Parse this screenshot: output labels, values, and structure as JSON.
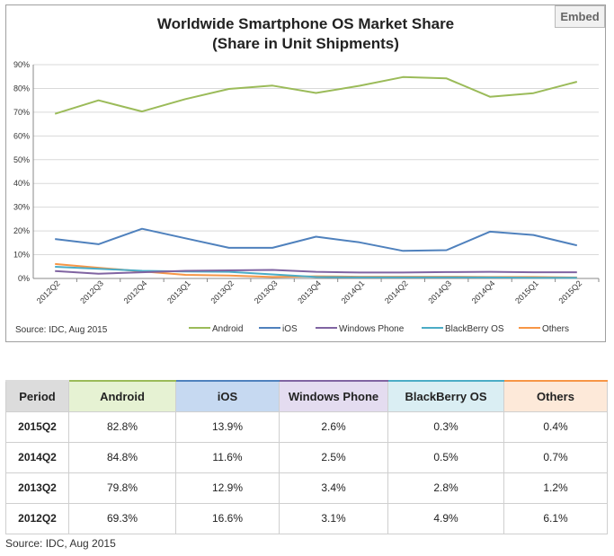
{
  "embed_label": "Embed",
  "chart_data": {
    "type": "line",
    "title": "Worldwide Smartphone OS Market Share",
    "subtitle": "(Share in Unit Shipments)",
    "source": "Source: IDC, Aug 2015",
    "ylim": [
      0,
      90
    ],
    "y_ticks": [
      "0%",
      "10%",
      "20%",
      "30%",
      "40%",
      "50%",
      "60%",
      "70%",
      "80%",
      "90%"
    ],
    "categories": [
      "2012Q2",
      "2012Q3",
      "2012Q4",
      "2013Q1",
      "2013Q2",
      "2013Q3",
      "2013Q4",
      "2014Q1",
      "2014Q2",
      "2014Q3",
      "2014Q4",
      "2015Q1",
      "2015Q2"
    ],
    "grid": true,
    "legend_position": "bottom",
    "series": [
      {
        "name": "Android",
        "color": "#9bbb59",
        "values": [
          69.3,
          75.0,
          70.3,
          75.5,
          79.8,
          81.2,
          78.1,
          81.1,
          84.8,
          84.2,
          76.5,
          78.0,
          82.8
        ]
      },
      {
        "name": "iOS",
        "color": "#4f81bd",
        "values": [
          16.6,
          14.4,
          20.9,
          16.9,
          12.9,
          12.9,
          17.6,
          15.2,
          11.6,
          11.9,
          19.7,
          18.3,
          13.9
        ]
      },
      {
        "name": "Windows Phone",
        "color": "#8064a2",
        "values": [
          3.1,
          2.0,
          2.6,
          3.2,
          3.4,
          3.6,
          2.8,
          2.5,
          2.5,
          2.7,
          2.8,
          2.6,
          2.6
        ]
      },
      {
        "name": "BlackBerry OS",
        "color": "#4bacc6",
        "values": [
          4.9,
          4.1,
          3.2,
          2.9,
          2.8,
          1.7,
          0.6,
          0.5,
          0.5,
          0.5,
          0.4,
          0.3,
          0.3
        ]
      },
      {
        "name": "Others",
        "color": "#f79646",
        "values": [
          6.1,
          4.5,
          3.0,
          1.5,
          1.2,
          0.6,
          0.9,
          0.7,
          0.7,
          0.7,
          0.6,
          0.6,
          0.4
        ]
      }
    ]
  },
  "table": {
    "columns": [
      {
        "label": "Period",
        "bg": "#dcdcdc",
        "border": "#dcdcdc"
      },
      {
        "label": "Android",
        "bg": "#e6f2d3",
        "border": "#9bbb59"
      },
      {
        "label": "iOS",
        "bg": "#c6d9f1",
        "border": "#4f81bd"
      },
      {
        "label": "Windows Phone",
        "bg": "#e4dcf0",
        "border": "#8064a2"
      },
      {
        "label": "BlackBerry OS",
        "bg": "#daeef3",
        "border": "#4bacc6"
      },
      {
        "label": "Others",
        "bg": "#fde9d9",
        "border": "#f79646"
      }
    ],
    "rows": [
      [
        "2015Q2",
        "82.8%",
        "13.9%",
        "2.6%",
        "0.3%",
        "0.4%"
      ],
      [
        "2014Q2",
        "84.8%",
        "11.6%",
        "2.5%",
        "0.5%",
        "0.7%"
      ],
      [
        "2013Q2",
        "79.8%",
        "12.9%",
        "3.4%",
        "2.8%",
        "1.2%"
      ],
      [
        "2012Q2",
        "69.3%",
        "16.6%",
        "3.1%",
        "4.9%",
        "6.1%"
      ]
    ],
    "source": "Source: IDC, Aug 2015"
  }
}
